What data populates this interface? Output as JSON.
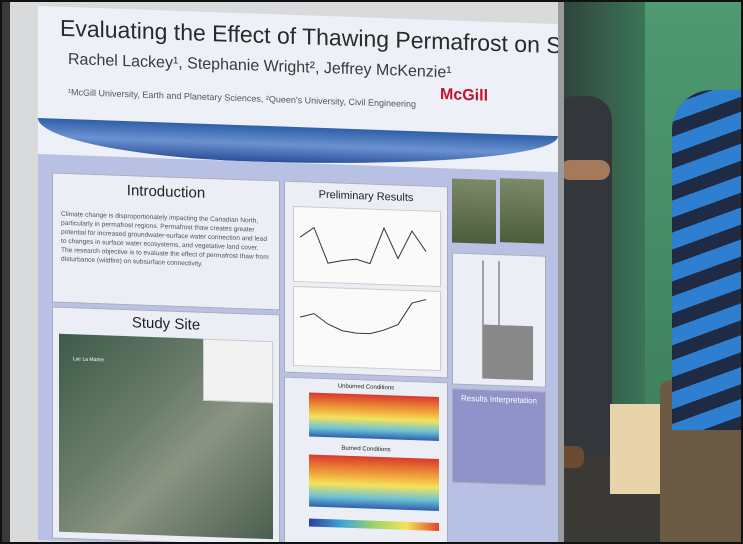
{
  "poster": {
    "title": "Evaluating the Effect of Thawing Permafrost on Subsurface Connectivity",
    "authors": "Rachel Lackey¹, Stephanie Wright², Jeffrey McKenzie¹",
    "affiliations": "¹McGill University, Earth and Planetary Sciences, ²Queen's University, Civil Engineering",
    "logo_text": "McGill",
    "sections": {
      "introduction": {
        "heading": "Introduction",
        "body": "Climate change is disproportionately impacting the Canadian North, particularly in permafrost regions. Permafrost thaw creates greater potential for increased groundwater-surface water connection and lead to changes in surface water ecosystems, and vegetative land cover. The research objective is to evaluate the effect of permafrost thaw from disturbance (wildfire) on subsurface connectivity."
      },
      "study_site": {
        "heading": "Study Site",
        "map_label": "Lac La Martre"
      },
      "preliminary_results": {
        "heading": "Preliminary Results",
        "profile_label_1": "Unburned Conditions",
        "profile_label_2": "Burned Conditions"
      },
      "results_interpretation": {
        "heading": "Results Interpretation"
      }
    }
  },
  "colors": {
    "poster_band": "#2f5fa8",
    "poster_background": "#b8c0e3",
    "logo": "#c41230"
  }
}
